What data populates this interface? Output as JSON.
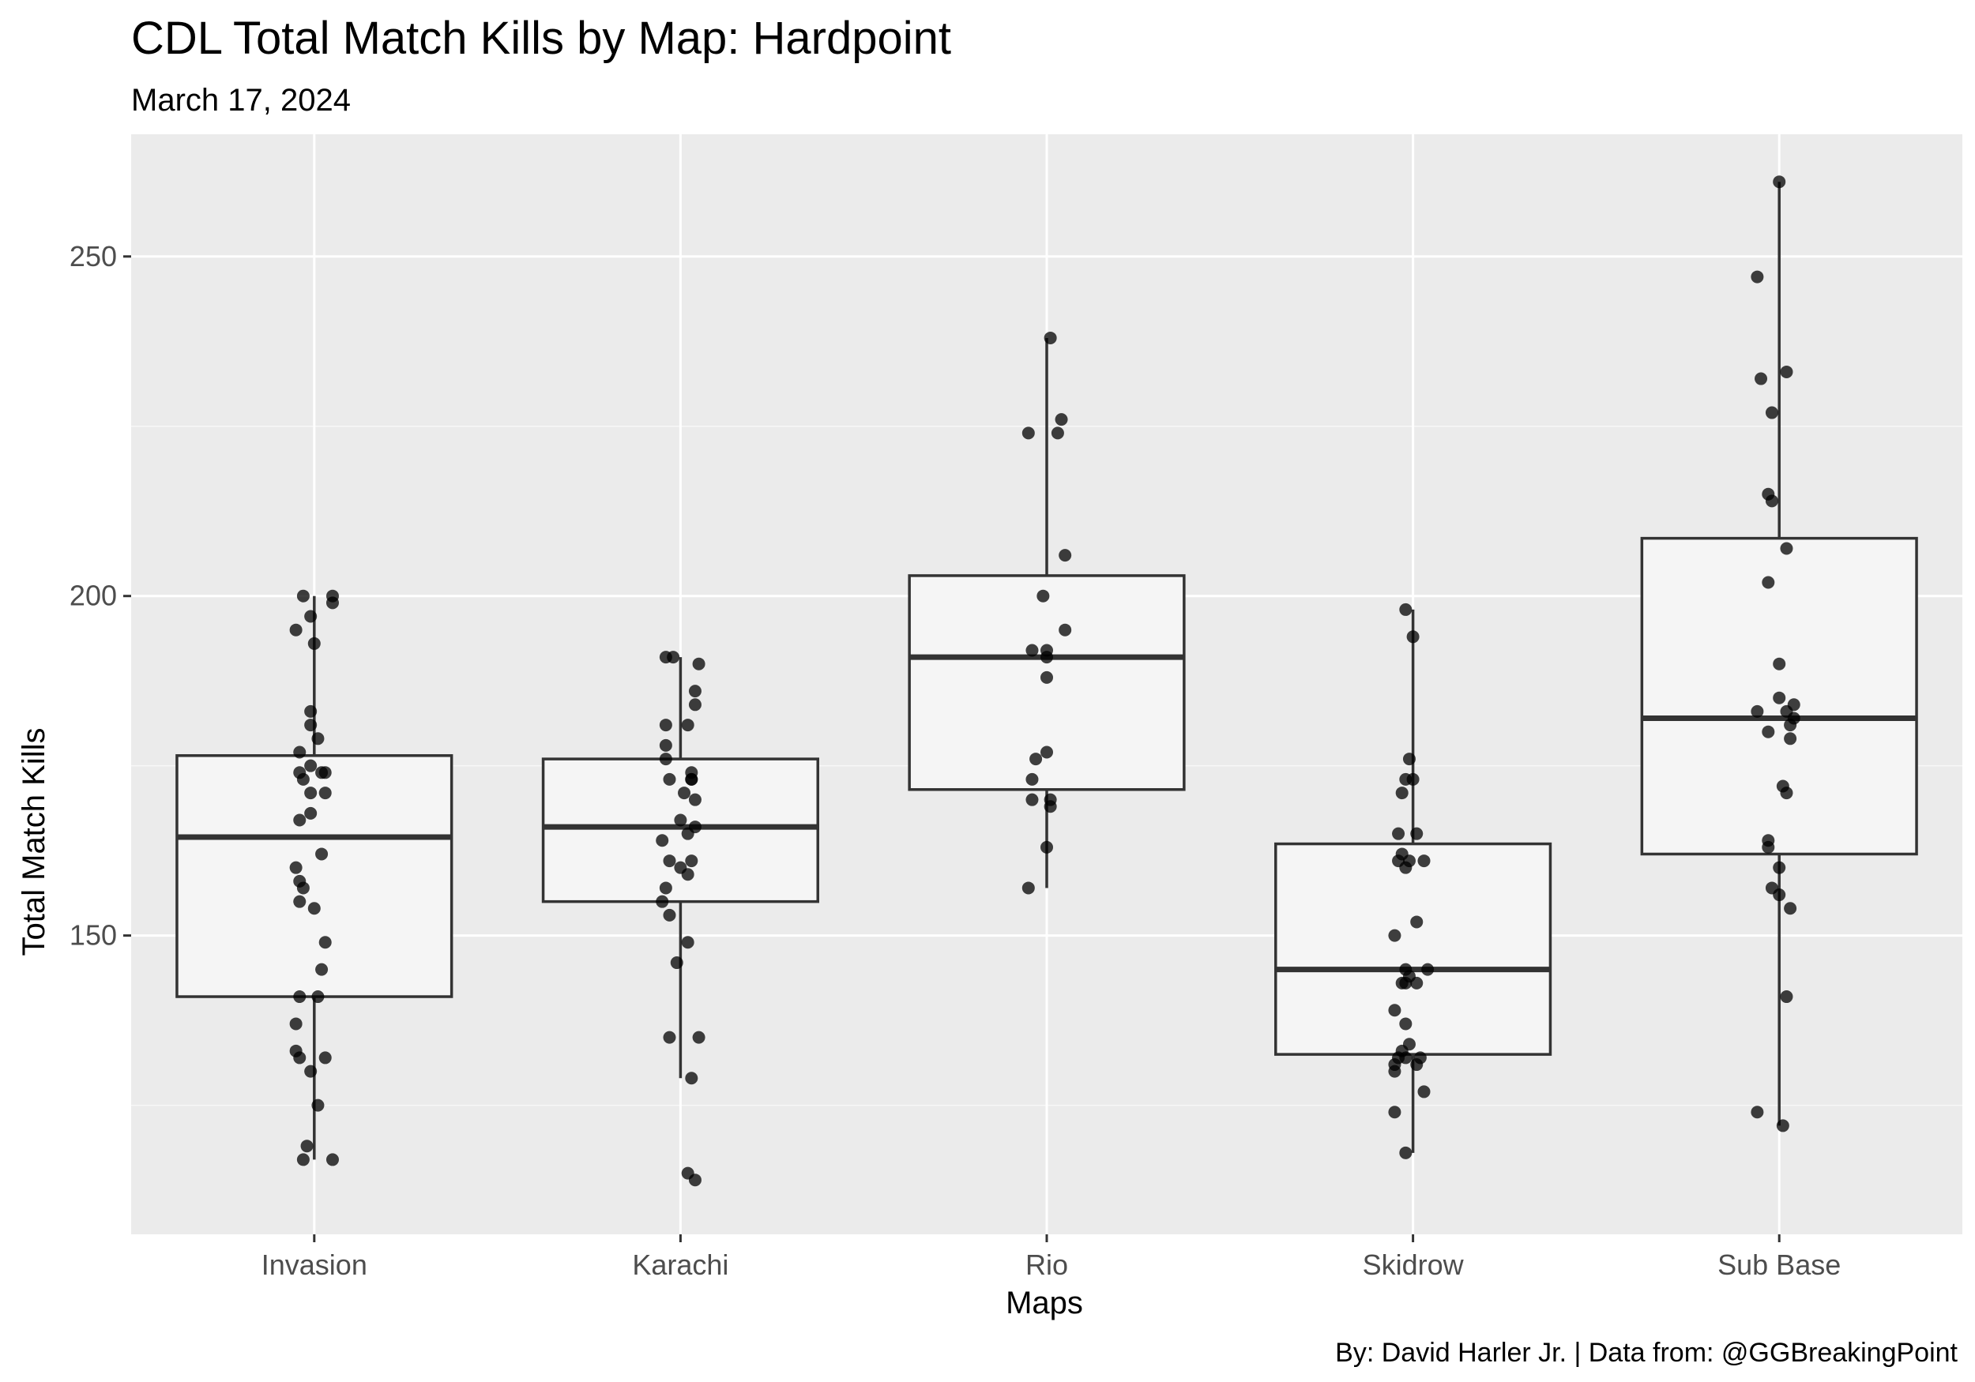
{
  "chart_data": {
    "type": "boxplot",
    "title": "CDL Total Match Kills by Map: Hardpoint",
    "subtitle": "March 17, 2024",
    "caption": "By: David Harler Jr. | Data from: @GGBreakingPoint",
    "xlabel": "Maps",
    "ylabel": "Total Match Kills",
    "ylim": [
      106,
      268
    ],
    "yticks": [
      150,
      200,
      250
    ],
    "grid": true,
    "legend": "none",
    "colors": {
      "panel_background": "#ebebeb",
      "grid_major": "#ffffff",
      "grid_minor": "#f7f7f7",
      "box_fill": "#f5f5f5",
      "box_line": "#333333",
      "point": "#000000"
    },
    "categories": [
      "Invasion",
      "Karachi",
      "Rio",
      "Skidrow",
      "Sub Base"
    ],
    "boxes": [
      {
        "category": "Invasion",
        "whisker_low": 117,
        "q1": 141,
        "median": 164.5,
        "q3": 176.5,
        "whisker_high": 200,
        "points": [
          {
            "dx": -0.03,
            "y": 200
          },
          {
            "dx": 0.05,
            "y": 200
          },
          {
            "dx": 0.05,
            "y": 199
          },
          {
            "dx": -0.05,
            "y": 195
          },
          {
            "dx": -0.01,
            "y": 197
          },
          {
            "dx": 0.0,
            "y": 193
          },
          {
            "dx": -0.01,
            "y": 183
          },
          {
            "dx": -0.01,
            "y": 181
          },
          {
            "dx": 0.01,
            "y": 179
          },
          {
            "dx": -0.04,
            "y": 177
          },
          {
            "dx": -0.04,
            "y": 174
          },
          {
            "dx": -0.01,
            "y": 175
          },
          {
            "dx": 0.02,
            "y": 174
          },
          {
            "dx": 0.03,
            "y": 174
          },
          {
            "dx": -0.03,
            "y": 173
          },
          {
            "dx": -0.01,
            "y": 171
          },
          {
            "dx": 0.03,
            "y": 171
          },
          {
            "dx": -0.01,
            "y": 168
          },
          {
            "dx": -0.04,
            "y": 167
          },
          {
            "dx": 0.02,
            "y": 162
          },
          {
            "dx": -0.05,
            "y": 160
          },
          {
            "dx": -0.04,
            "y": 158
          },
          {
            "dx": -0.03,
            "y": 157
          },
          {
            "dx": -0.04,
            "y": 155
          },
          {
            "dx": -0.0,
            "y": 154
          },
          {
            "dx": 0.03,
            "y": 149
          },
          {
            "dx": 0.02,
            "y": 145
          },
          {
            "dx": -0.04,
            "y": 141
          },
          {
            "dx": 0.01,
            "y": 141
          },
          {
            "dx": -0.05,
            "y": 137
          },
          {
            "dx": -0.05,
            "y": 133
          },
          {
            "dx": -0.04,
            "y": 132
          },
          {
            "dx": 0.03,
            "y": 132
          },
          {
            "dx": -0.01,
            "y": 130
          },
          {
            "dx": 0.01,
            "y": 125
          },
          {
            "dx": -0.02,
            "y": 119
          },
          {
            "dx": -0.03,
            "y": 117
          },
          {
            "dx": 0.05,
            "y": 117
          }
        ]
      },
      {
        "category": "Karachi",
        "whisker_low": 129,
        "q1": 155,
        "median": 166,
        "q3": 176,
        "whisker_high": 191,
        "points": [
          {
            "dx": -0.04,
            "y": 191
          },
          {
            "dx": -0.02,
            "y": 191
          },
          {
            "dx": 0.05,
            "y": 190
          },
          {
            "dx": 0.04,
            "y": 186
          },
          {
            "dx": 0.04,
            "y": 184
          },
          {
            "dx": -0.04,
            "y": 181
          },
          {
            "dx": 0.02,
            "y": 181
          },
          {
            "dx": -0.04,
            "y": 178
          },
          {
            "dx": -0.04,
            "y": 176
          },
          {
            "dx": 0.03,
            "y": 174
          },
          {
            "dx": 0.03,
            "y": 173
          },
          {
            "dx": 0.03,
            "y": 173
          },
          {
            "dx": -0.03,
            "y": 173
          },
          {
            "dx": 0.01,
            "y": 171
          },
          {
            "dx": 0.04,
            "y": 170
          },
          {
            "dx": 0.0,
            "y": 167
          },
          {
            "dx": 0.04,
            "y": 166
          },
          {
            "dx": 0.02,
            "y": 165
          },
          {
            "dx": -0.05,
            "y": 164
          },
          {
            "dx": -0.03,
            "y": 161
          },
          {
            "dx": 0.03,
            "y": 161
          },
          {
            "dx": 0.0,
            "y": 160
          },
          {
            "dx": 0.02,
            "y": 159
          },
          {
            "dx": -0.04,
            "y": 157
          },
          {
            "dx": -0.05,
            "y": 155
          },
          {
            "dx": -0.03,
            "y": 153
          },
          {
            "dx": 0.02,
            "y": 149
          },
          {
            "dx": -0.01,
            "y": 146
          },
          {
            "dx": -0.03,
            "y": 135
          },
          {
            "dx": 0.05,
            "y": 135
          },
          {
            "dx": 0.03,
            "y": 129
          },
          {
            "dx": 0.02,
            "y": 115
          },
          {
            "dx": 0.04,
            "y": 114
          }
        ]
      },
      {
        "category": "Rio",
        "whisker_low": 157,
        "q1": 171.5,
        "median": 191,
        "q3": 203,
        "whisker_high": 238,
        "points": [
          {
            "dx": 0.01,
            "y": 238
          },
          {
            "dx": 0.04,
            "y": 226
          },
          {
            "dx": -0.05,
            "y": 224
          },
          {
            "dx": 0.03,
            "y": 224
          },
          {
            "dx": 0.05,
            "y": 206
          },
          {
            "dx": -0.01,
            "y": 200
          },
          {
            "dx": 0.05,
            "y": 195
          },
          {
            "dx": -0.04,
            "y": 192
          },
          {
            "dx": -0.0,
            "y": 192
          },
          {
            "dx": -0.0,
            "y": 191
          },
          {
            "dx": -0.0,
            "y": 188
          },
          {
            "dx": -0.0,
            "y": 177
          },
          {
            "dx": -0.03,
            "y": 176
          },
          {
            "dx": -0.04,
            "y": 173
          },
          {
            "dx": -0.04,
            "y": 170
          },
          {
            "dx": 0.01,
            "y": 170
          },
          {
            "dx": 0.01,
            "y": 169
          },
          {
            "dx": 0.0,
            "y": 163
          },
          {
            "dx": -0.05,
            "y": 157
          }
        ]
      },
      {
        "category": "Skidrow",
        "whisker_low": 118,
        "q1": 132.5,
        "median": 145,
        "q3": 163.5,
        "whisker_high": 198,
        "points": [
          {
            "dx": -0.02,
            "y": 198
          },
          {
            "dx": -0.0,
            "y": 194
          },
          {
            "dx": -0.01,
            "y": 176
          },
          {
            "dx": -0.02,
            "y": 173
          },
          {
            "dx": 0.0,
            "y": 173
          },
          {
            "dx": -0.03,
            "y": 171
          },
          {
            "dx": -0.04,
            "y": 165
          },
          {
            "dx": 0.01,
            "y": 165
          },
          {
            "dx": -0.03,
            "y": 162
          },
          {
            "dx": -0.01,
            "y": 161
          },
          {
            "dx": 0.03,
            "y": 161
          },
          {
            "dx": -0.04,
            "y": 161
          },
          {
            "dx": -0.02,
            "y": 160
          },
          {
            "dx": 0.01,
            "y": 152
          },
          {
            "dx": -0.05,
            "y": 150
          },
          {
            "dx": -0.02,
            "y": 145
          },
          {
            "dx": 0.04,
            "y": 145
          },
          {
            "dx": -0.01,
            "y": 144
          },
          {
            "dx": -0.03,
            "y": 143
          },
          {
            "dx": -0.02,
            "y": 143
          },
          {
            "dx": 0.01,
            "y": 143
          },
          {
            "dx": -0.05,
            "y": 139
          },
          {
            "dx": -0.02,
            "y": 137
          },
          {
            "dx": -0.01,
            "y": 134
          },
          {
            "dx": -0.03,
            "y": 133
          },
          {
            "dx": -0.02,
            "y": 132
          },
          {
            "dx": -0.04,
            "y": 132
          },
          {
            "dx": 0.02,
            "y": 132
          },
          {
            "dx": 0.01,
            "y": 131
          },
          {
            "dx": -0.05,
            "y": 131
          },
          {
            "dx": -0.05,
            "y": 130
          },
          {
            "dx": 0.03,
            "y": 127
          },
          {
            "dx": -0.05,
            "y": 124
          },
          {
            "dx": -0.02,
            "y": 118
          }
        ]
      },
      {
        "category": "Sub Base",
        "whisker_low": 122,
        "q1": 162,
        "median": 182,
        "q3": 208.5,
        "whisker_high": 261,
        "points": [
          {
            "dx": -0.0,
            "y": 261
          },
          {
            "dx": -0.06,
            "y": 247
          },
          {
            "dx": 0.02,
            "y": 233
          },
          {
            "dx": -0.05,
            "y": 232
          },
          {
            "dx": -0.02,
            "y": 227
          },
          {
            "dx": -0.03,
            "y": 215
          },
          {
            "dx": -0.02,
            "y": 214
          },
          {
            "dx": 0.02,
            "y": 207
          },
          {
            "dx": -0.03,
            "y": 202
          },
          {
            "dx": -0.0,
            "y": 190
          },
          {
            "dx": -0.0,
            "y": 185
          },
          {
            "dx": 0.04,
            "y": 184
          },
          {
            "dx": -0.06,
            "y": 183
          },
          {
            "dx": 0.02,
            "y": 183
          },
          {
            "dx": 0.04,
            "y": 182
          },
          {
            "dx": 0.03,
            "y": 181
          },
          {
            "dx": -0.03,
            "y": 180
          },
          {
            "dx": 0.03,
            "y": 179
          },
          {
            "dx": 0.01,
            "y": 172
          },
          {
            "dx": 0.02,
            "y": 171
          },
          {
            "dx": -0.03,
            "y": 164
          },
          {
            "dx": -0.03,
            "y": 163
          },
          {
            "dx": -0.0,
            "y": 160
          },
          {
            "dx": -0.02,
            "y": 157
          },
          {
            "dx": 0.0,
            "y": 156
          },
          {
            "dx": 0.03,
            "y": 154
          },
          {
            "dx": 0.02,
            "y": 141
          },
          {
            "dx": -0.06,
            "y": 124
          },
          {
            "dx": 0.01,
            "y": 122
          }
        ]
      }
    ]
  }
}
